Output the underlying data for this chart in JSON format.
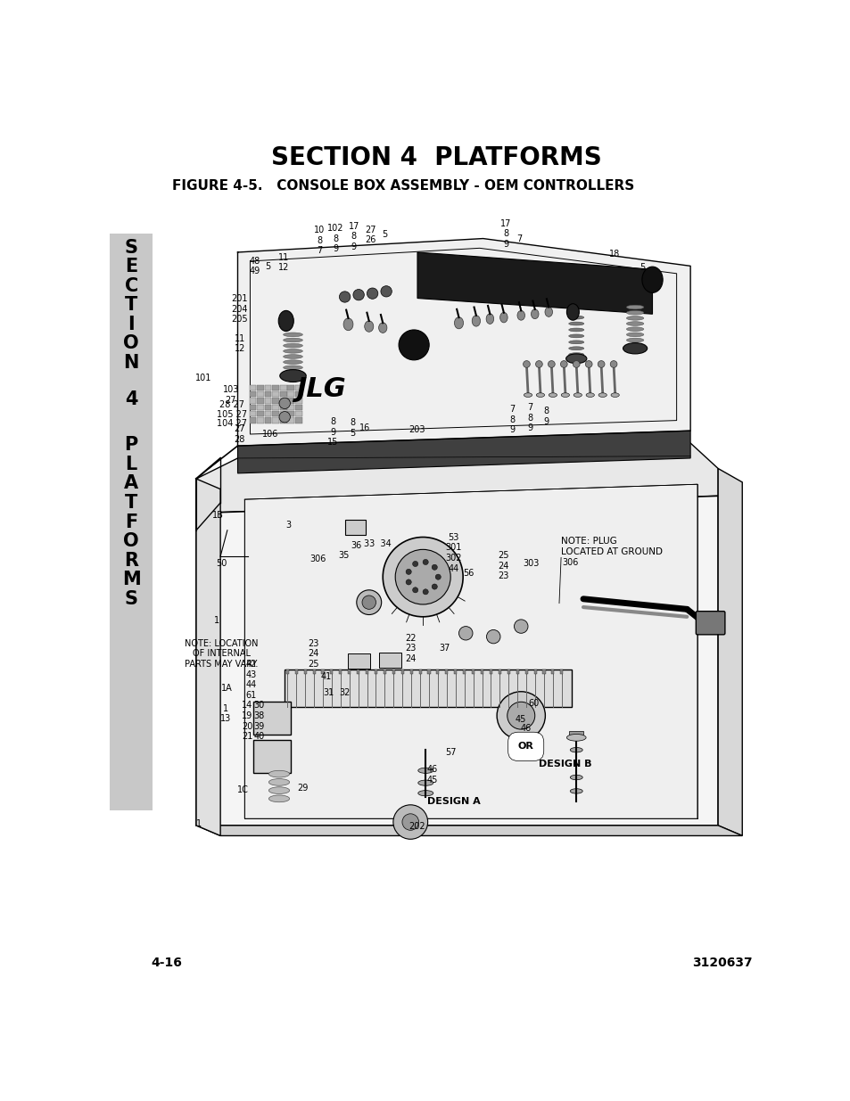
{
  "title": "SECTION 4  PLATFORMS",
  "figure_label": "FIGURE 4-5.   CONSOLE BOX ASSEMBLY - OEM CONTROLLERS",
  "page_number_left": "4-16",
  "page_number_right": "3120637",
  "sidebar_text": [
    "S",
    "E",
    "C",
    "T",
    "I",
    "O",
    "N",
    "4",
    "P",
    "L",
    "A",
    "T",
    "F",
    "O",
    "R",
    "M",
    "S"
  ],
  "sidebar_bg": "#c8c8c8",
  "bg_color": "#ffffff",
  "title_fontsize": 20,
  "figure_label_fontsize": 11,
  "page_num_fontsize": 10,
  "sidebar_fontsize": 15
}
